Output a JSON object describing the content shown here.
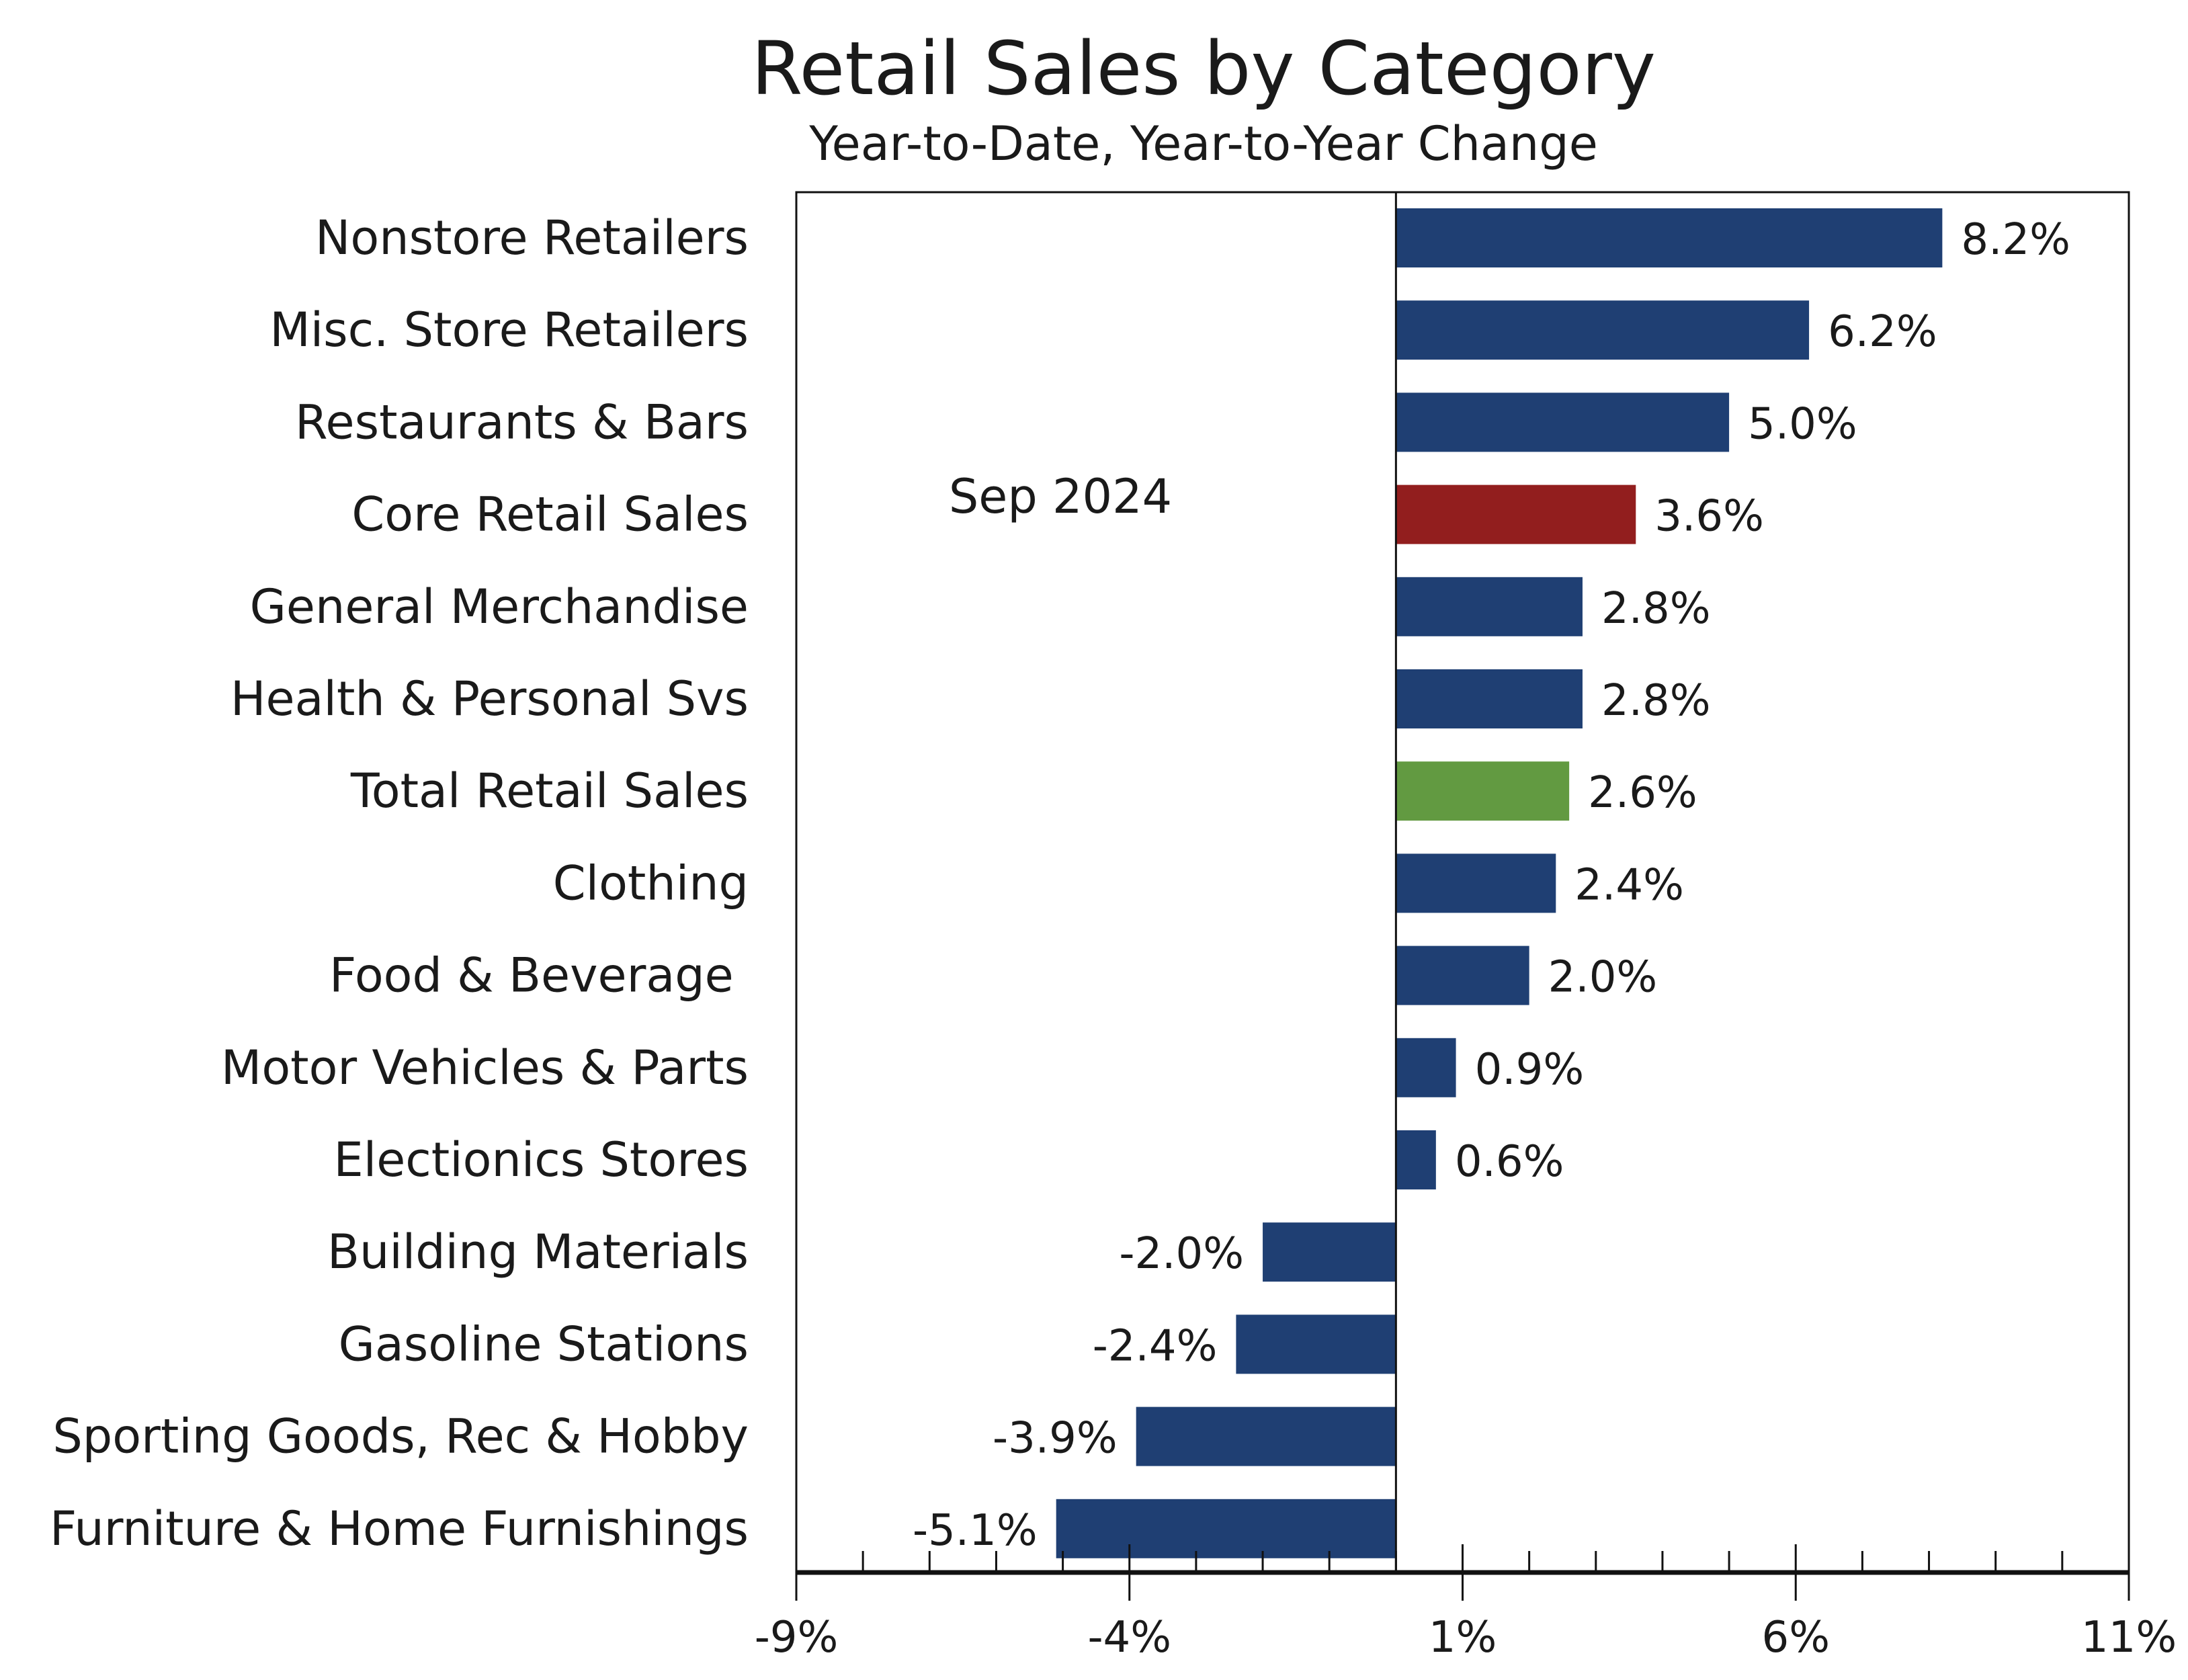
{
  "chart_data": {
    "type": "bar",
    "orientation": "horizontal",
    "title": "Retail Sales by Category",
    "subtitle": "Year-to-Date, Year-to-Year Change",
    "annotation": "Sep 2024",
    "xlabel": "",
    "ylabel": "",
    "xlim": [
      -9,
      11
    ],
    "x_ticks": [
      -9,
      -4,
      1,
      6,
      11
    ],
    "x_tick_labels": [
      "-9%",
      "-4%",
      "1%",
      "6%",
      "11%"
    ],
    "minor_tick_step": 1,
    "grid": false,
    "categories": [
      "Nonstore Retailers",
      "Misc. Store Retailers",
      "Restaurants & Bars",
      "Core Retail Sales",
      "General Merchandise",
      "Health & Personal Svs",
      "Total Retail Sales",
      "Clothing",
      "Food & Beverage ",
      "Motor Vehicles & Parts",
      "Electionics Stores",
      "Building Materials",
      "Gasoline Stations",
      "Sporting Goods, Rec & Hobby",
      "Furniture & Home Furnishings"
    ],
    "values": [
      8.2,
      6.2,
      5.0,
      3.6,
      2.8,
      2.8,
      2.6,
      2.4,
      2.0,
      0.9,
      0.6,
      -2.0,
      -2.4,
      -3.9,
      -5.1
    ],
    "value_labels": [
      "8.2%",
      "6.2%",
      "5.0%",
      "3.6%",
      "2.8%",
      "2.8%",
      "2.6%",
      "2.4%",
      "2.0%",
      "0.9%",
      "0.6%",
      "-2.0%",
      "-2.4%",
      "-3.9%",
      "-5.1%"
    ],
    "highlight": {
      "Core Retail Sales": "core",
      "Total Retail Sales": "total"
    },
    "colors": {
      "default": "#1f3f73",
      "core": "#921e1e",
      "total": "#629a41"
    }
  }
}
